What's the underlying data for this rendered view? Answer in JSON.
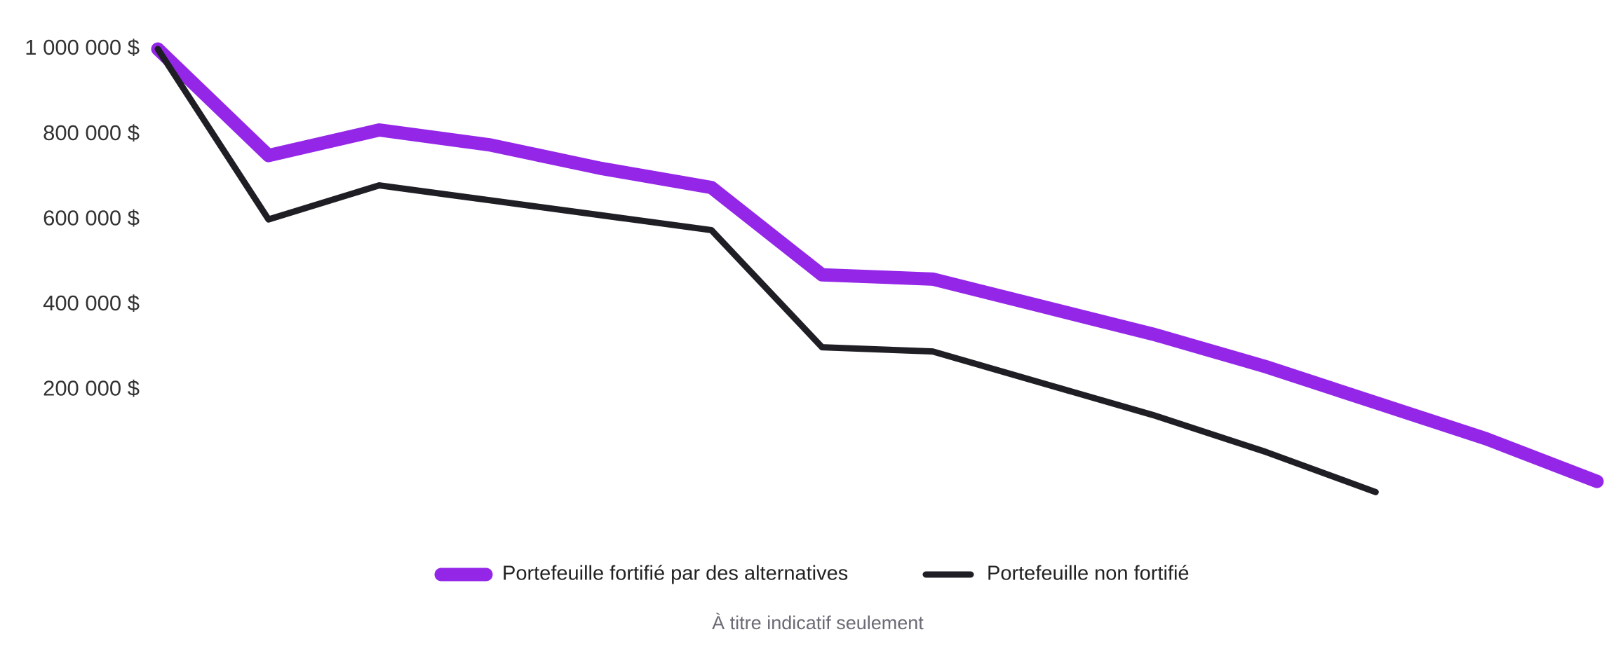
{
  "chart_data": {
    "type": "line",
    "categories": [
      null,
      null,
      null,
      null,
      null,
      null,
      null,
      null,
      null,
      null,
      null,
      null,
      null,
      null
    ],
    "series": [
      {
        "name": "Portefeuille fortifié par des alternatives",
        "color": "#9426e8",
        "values": [
          1000000,
          750000,
          810000,
          775000,
          720000,
          675000,
          470000,
          460000,
          395000,
          330000,
          255000,
          170000,
          85000,
          -15000
        ]
      },
      {
        "name": "Portefeuille non fortifié",
        "color": "#1e1e24",
        "values": [
          1000000,
          600000,
          680000,
          645000,
          610000,
          575000,
          300000,
          290000,
          215000,
          140000,
          55000,
          -40000,
          null,
          null
        ]
      }
    ],
    "ylim": [
      -100000,
      1050000
    ],
    "yticks": [
      {
        "value": 200000,
        "label": "200 000 $"
      },
      {
        "value": 400000,
        "label": "400 000 $"
      },
      {
        "value": 600000,
        "label": "600 000 $"
      },
      {
        "value": 800000,
        "label": "800 000 $"
      },
      {
        "value": 1000000,
        "label": "1 000 000 $"
      }
    ],
    "grid": false,
    "legend": "bottom",
    "annotation": "À titre indicatif seulement"
  }
}
